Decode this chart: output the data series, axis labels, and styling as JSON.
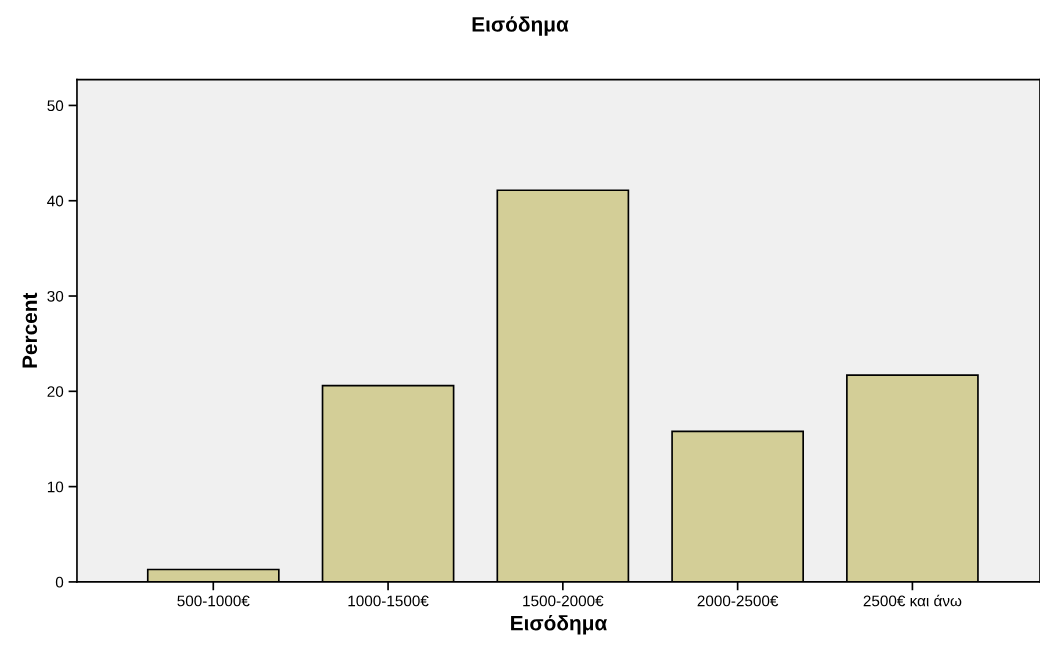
{
  "chart_data": {
    "type": "bar",
    "title": "Εισόδημα",
    "xlabel": "Εισόδημα",
    "ylabel": "Percent",
    "categories": [
      "500-1000€",
      "1000-1500€",
      "1500-2000€",
      "2000-2500€",
      "2500€ και άνω"
    ],
    "values": [
      1.3,
      20.6,
      41.1,
      15.8,
      21.7
    ],
    "color": "#d3ce97",
    "ylim": [
      0,
      52.7
    ],
    "yticks": [
      0,
      10,
      20,
      30,
      40,
      50
    ],
    "grid": false,
    "legend": false
  }
}
